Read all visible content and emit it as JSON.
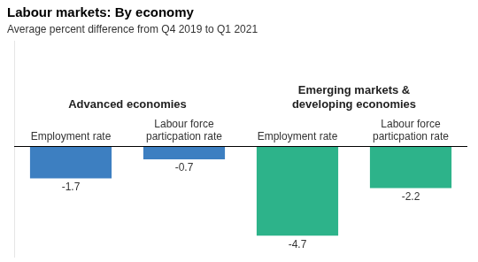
{
  "chart_data": {
    "type": "bar",
    "title": "Labour markets: By economy",
    "subtitle": "Average percent difference from Q4 2019 to Q1 2021",
    "categories": [
      "Employment rate",
      "Labour force\nparticpation rate",
      "Employment rate",
      "Labour force\nparticpation rate"
    ],
    "series": [
      {
        "name": "Advanced economies",
        "color": "#3d7fc1",
        "values": [
          -1.7,
          -0.7,
          null,
          null
        ]
      },
      {
        "name": "Emerging markets &\ndeveloping economies",
        "color": "#2db38a",
        "values": [
          null,
          null,
          -4.7,
          -2.2
        ]
      }
    ],
    "ylim": [
      -5.8,
      5.5
    ],
    "yticks": [],
    "tick_labels": false,
    "grid": false,
    "data_labels": true
  }
}
